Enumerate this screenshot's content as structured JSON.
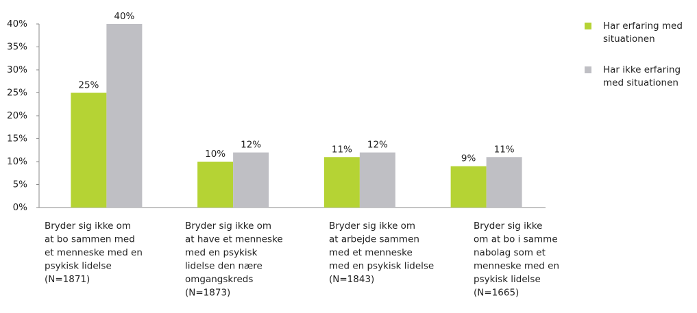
{
  "chart_data": {
    "type": "bar",
    "categories": [
      [
        "Bryder sig ikke om",
        "at bo sammen med",
        "et menneske med en",
        "psykisk lidelse",
        "(N=1871)"
      ],
      [
        "Bryder sig ikke om",
        "at have et menneske",
        "med en psykisk",
        "lidelse den nære",
        "omgangskreds",
        "(N=1873)"
      ],
      [
        "Bryder sig ikke om",
        "at arbejde sammen",
        "med et menneske",
        "med en psykisk lidelse",
        "(N=1843)"
      ],
      [
        "Bryder sig ikke",
        "om at bo i samme",
        "nabolag som et",
        "menneske med en",
        "psykisk lidelse",
        "(N=1665)"
      ]
    ],
    "series": [
      {
        "name": [
          "Har erfaring med",
          "situationen"
        ],
        "color": "#b5d334",
        "values": [
          25,
          10,
          11,
          9
        ],
        "value_labels": [
          "25%",
          "10%",
          "11%",
          "9%"
        ]
      },
      {
        "name": [
          "Har ikke erfaring",
          "med situationen"
        ],
        "color": "#bfbfc4",
        "values": [
          40,
          12,
          12,
          11
        ],
        "value_labels": [
          "40%",
          "12%",
          "12%",
          "11%"
        ]
      }
    ],
    "ylim": [
      0,
      40
    ],
    "yticks": [
      {
        "value": 0,
        "label": "0%"
      },
      {
        "value": 5,
        "label": "5%"
      },
      {
        "value": 10,
        "label": "10%"
      },
      {
        "value": 15,
        "label": "15%"
      },
      {
        "value": 20,
        "label": "20%"
      },
      {
        "value": 25,
        "label": "25%"
      },
      {
        "value": 30,
        "label": "30%"
      },
      {
        "value": 35,
        "label": "35%"
      },
      {
        "value": 40,
        "label": "40%"
      }
    ],
    "legend": "top-right"
  }
}
